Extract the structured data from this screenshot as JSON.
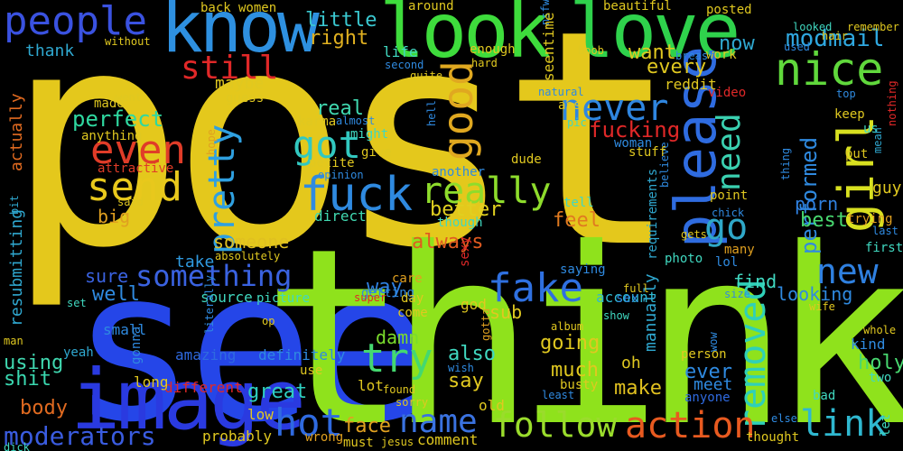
{
  "words": [
    {
      "id": "post",
      "text": "post",
      "color": "#e4c81c"
    },
    {
      "id": "see",
      "text": "see",
      "color": "#2546e8"
    },
    {
      "id": "think",
      "text": "think",
      "color": "#8fe21c"
    },
    {
      "id": "image",
      "text": "image",
      "color": "#2a3ae0"
    },
    {
      "id": "know",
      "text": "know",
      "color": "#2e90e0"
    },
    {
      "id": "look",
      "text": "look",
      "color": "#3edc3c"
    },
    {
      "id": "love",
      "text": "love",
      "color": "#2fd24c"
    },
    {
      "id": "people",
      "text": "people",
      "color": "#3a52e0"
    },
    {
      "id": "nice",
      "text": "nice",
      "color": "#60d83c"
    },
    {
      "id": "modmail",
      "text": "modmail",
      "color": "#2fa8e0"
    },
    {
      "id": "girl",
      "text": "girl",
      "color": "#d8e020"
    },
    {
      "id": "please",
      "text": "please",
      "color": "#2f6ce0"
    },
    {
      "id": "good",
      "text": "good",
      "color": "#e0a820"
    },
    {
      "id": "still",
      "text": "still",
      "color": "#e02828"
    },
    {
      "id": "fuck",
      "text": "fuck",
      "color": "#2f8ae0"
    },
    {
      "id": "send",
      "text": "send",
      "color": "#e8c81c"
    },
    {
      "id": "even",
      "text": "even",
      "color": "#e03c28"
    },
    {
      "id": "got",
      "text": "got",
      "color": "#32c8c0"
    },
    {
      "id": "really",
      "text": "really",
      "color": "#8edc2c"
    },
    {
      "id": "pretty",
      "text": "pretty",
      "color": "#2fa0e0"
    },
    {
      "id": "never",
      "text": "never",
      "color": "#2f86e0"
    },
    {
      "id": "need",
      "text": "need",
      "color": "#3ad0b0"
    },
    {
      "id": "go",
      "text": "go",
      "color": "#2fa8c8"
    },
    {
      "id": "removed",
      "text": "removed",
      "color": "#2fd0b8"
    },
    {
      "id": "fake",
      "text": "fake",
      "color": "#2f70e0"
    },
    {
      "id": "try",
      "text": "try",
      "color": "#44d870"
    },
    {
      "id": "something",
      "text": "something",
      "color": "#3a62e0"
    },
    {
      "id": "new",
      "text": "new",
      "color": "#2f80e0"
    },
    {
      "id": "hot",
      "text": "hot",
      "color": "#2f6ae0"
    },
    {
      "id": "name",
      "text": "name",
      "color": "#3a72e0"
    },
    {
      "id": "follow",
      "text": "follow",
      "color": "#9adc2c"
    },
    {
      "id": "action",
      "text": "action",
      "color": "#e85a20"
    },
    {
      "id": "link",
      "text": "link",
      "color": "#2fb8d0"
    },
    {
      "id": "moderators",
      "text": "moderators",
      "color": "#3a5ce0"
    },
    {
      "id": "perfect",
      "text": "perfect",
      "color": "#2fd8a0"
    },
    {
      "id": "fucking",
      "text": "fucking",
      "color": "#e02828"
    },
    {
      "id": "performed",
      "text": "performed",
      "color": "#2f8ae0"
    },
    {
      "id": "someone",
      "text": "someone",
      "color": "#e0c020"
    },
    {
      "id": "always",
      "text": "always",
      "color": "#e05a20"
    },
    {
      "id": "better",
      "text": "better",
      "color": "#e0d020"
    },
    {
      "id": "feel",
      "text": "feel",
      "color": "#e07a20"
    },
    {
      "id": "porn",
      "text": "porn",
      "color": "#2f80e0"
    },
    {
      "id": "best",
      "text": "best",
      "color": "#48d870"
    },
    {
      "id": "great",
      "text": "great",
      "color": "#2fd0c0"
    },
    {
      "id": "shit",
      "text": "shit",
      "color": "#3ad8b0"
    },
    {
      "id": "body",
      "text": "body",
      "color": "#e06a20"
    },
    {
      "id": "face",
      "text": "face",
      "color": "#e0a020"
    },
    {
      "id": "make",
      "text": "make",
      "color": "#e0c020"
    },
    {
      "id": "real",
      "text": "real",
      "color": "#40d8b0"
    },
    {
      "id": "little",
      "text": "little",
      "color": "#3ac8d0"
    },
    {
      "id": "right",
      "text": "right",
      "color": "#e0b020"
    },
    {
      "id": "maybe",
      "text": "maybe",
      "color": "#e0c820"
    },
    {
      "id": "every",
      "text": "every",
      "color": "#e0c820"
    },
    {
      "id": "want",
      "text": "want",
      "color": "#e0c820"
    },
    {
      "id": "now",
      "text": "now",
      "color": "#2fa8d0"
    },
    {
      "id": "way",
      "text": "way",
      "color": "#2f80e0"
    },
    {
      "id": "sub",
      "text": "sub",
      "color": "#e0c820"
    },
    {
      "id": "going",
      "text": "going",
      "color": "#e0c820"
    },
    {
      "id": "damn",
      "text": "damn",
      "color": "#7adc2c"
    },
    {
      "id": "much",
      "text": "much",
      "color": "#e0c820"
    },
    {
      "id": "also",
      "text": "also",
      "color": "#40d8c0"
    },
    {
      "id": "say",
      "text": "say",
      "color": "#e0c820"
    },
    {
      "id": "ever",
      "text": "ever",
      "color": "#2f8ae0"
    },
    {
      "id": "meet",
      "text": "meet",
      "color": "#2f8ae0"
    },
    {
      "id": "oh",
      "text": "oh",
      "color": "#e0c820"
    },
    {
      "id": "using",
      "text": "using",
      "color": "#40d8b0"
    },
    {
      "id": "well",
      "text": "well",
      "color": "#2f8ae0"
    },
    {
      "id": "sure",
      "text": "sure",
      "color": "#3a62e0"
    },
    {
      "id": "take",
      "text": "take",
      "color": "#2f9ae0"
    },
    {
      "id": "find",
      "text": "find",
      "color": "#40d8c0"
    },
    {
      "id": "looking",
      "text": "looking",
      "color": "#2f8ae0"
    },
    {
      "id": "holy",
      "text": "holy",
      "color": "#48d870"
    },
    {
      "id": "kind",
      "text": "kind",
      "color": "#2f8ae0"
    },
    {
      "id": "account",
      "text": "account",
      "color": "#2fb8d0"
    },
    {
      "id": "source",
      "text": "source",
      "color": "#40d8c0"
    },
    {
      "id": "big",
      "text": "big",
      "color": "#e0a020"
    },
    {
      "id": "direct",
      "text": "direct",
      "color": "#40d8b0"
    },
    {
      "id": "anything",
      "text": "anything",
      "color": "#e0c820"
    },
    {
      "id": "attractive",
      "text": "attractive",
      "color": "#e03c28"
    },
    {
      "id": "thank",
      "text": "thank",
      "color": "#2fa8d0"
    },
    {
      "id": "actually",
      "text": "actually",
      "color": "#e06a20"
    },
    {
      "id": "resubmitting",
      "text": "resubmitting",
      "color": "#2fa8d0"
    },
    {
      "id": "probably",
      "text": "probably",
      "color": "#e0c820"
    },
    {
      "id": "low",
      "text": "low",
      "color": "#e0c820"
    },
    {
      "id": "definitely",
      "text": "definitely",
      "color": "#2f8ae0"
    },
    {
      "id": "amazing",
      "text": "amazing",
      "color": "#2f6ae0"
    },
    {
      "id": "different",
      "text": "different",
      "color": "#e02828"
    },
    {
      "id": "small",
      "text": "small",
      "color": "#2f8ae0"
    },
    {
      "id": "yeah",
      "text": "yeah",
      "color": "#2fa8d0"
    },
    {
      "id": "long",
      "text": "long",
      "color": "#e0c820"
    },
    {
      "id": "gonna",
      "text": "gonna",
      "color": "#2f8ae0"
    },
    {
      "id": "picture",
      "text": "picture",
      "color": "#40d8c0"
    },
    {
      "id": "getting",
      "text": "getting",
      "color": "#2f8ae0"
    },
    {
      "id": "care",
      "text": "care",
      "color": "#e0a020"
    },
    {
      "id": "day",
      "text": "day",
      "color": "#e0c820"
    },
    {
      "id": "come",
      "text": "come",
      "color": "#e0c820"
    },
    {
      "id": "god",
      "text": "god",
      "color": "#e0c820"
    },
    {
      "id": "sexy",
      "text": "sexy",
      "color": "#e02828"
    },
    {
      "id": "wish",
      "text": "wish",
      "color": "#2f8ae0"
    },
    {
      "id": "gotta",
      "text": "gotta",
      "color": "#e0a020"
    },
    {
      "id": "old",
      "text": "old",
      "color": "#e0c820"
    },
    {
      "id": "lot",
      "text": "lot",
      "color": "#e0c820"
    },
    {
      "id": "found",
      "text": "found",
      "color": "#e0c820"
    },
    {
      "id": "sorry",
      "text": "sorry",
      "color": "#e0c820"
    },
    {
      "id": "least",
      "text": "least",
      "color": "#2f8ae0"
    },
    {
      "id": "busty",
      "text": "busty",
      "color": "#e0c820"
    },
    {
      "id": "must",
      "text": "must",
      "color": "#e0c820"
    },
    {
      "id": "comment",
      "text": "comment",
      "color": "#e0c820"
    },
    {
      "id": "jesus",
      "text": "jesus",
      "color": "#e0c820"
    },
    {
      "id": "wrong",
      "text": "wrong",
      "color": "#e0a020"
    },
    {
      "id": "thought",
      "text": "thought",
      "color": "#e0c820"
    },
    {
      "id": "else",
      "text": "else",
      "color": "#2f8ae0"
    },
    {
      "id": "anyone",
      "text": "anyone",
      "color": "#2f6ae0"
    },
    {
      "id": "bad",
      "text": "bad",
      "color": "#40d8c0"
    },
    {
      "id": "two",
      "text": "two",
      "color": "#40d8c0"
    },
    {
      "id": "let",
      "text": "let",
      "color": "#40d8c0"
    },
    {
      "id": "whole",
      "text": "whole",
      "color": "#e0c820"
    },
    {
      "id": "wife",
      "text": "wife",
      "color": "#e0c820"
    },
    {
      "id": "first",
      "text": "first",
      "color": "#40d8c0"
    },
    {
      "id": "trying",
      "text": "trying",
      "color": "#e0a020"
    },
    {
      "id": "guy",
      "text": "guy",
      "color": "#e0c820"
    },
    {
      "id": "us",
      "text": "us",
      "color": "#40d8c0"
    },
    {
      "id": "put",
      "text": "put",
      "color": "#e0c820"
    },
    {
      "id": "keep",
      "text": "keep",
      "color": "#e0c820"
    },
    {
      "id": "top",
      "text": "top",
      "color": "#2f8ae0"
    },
    {
      "id": "mean",
      "text": "mean",
      "color": "#2fa8d0"
    },
    {
      "id": "nothing",
      "text": "nothing",
      "color": "#e02828"
    },
    {
      "id": "last",
      "text": "last",
      "color": "#2f8ae0"
    },
    {
      "id": "many",
      "text": "many",
      "color": "#e0a020"
    },
    {
      "id": "lol",
      "text": "lol",
      "color": "#2f8ae0"
    },
    {
      "id": "size",
      "text": "size",
      "color": "#2f8ae0"
    },
    {
      "id": "point",
      "text": "point",
      "color": "#e0c820"
    },
    {
      "id": "chick",
      "text": "chick",
      "color": "#2f8ae0"
    },
    {
      "id": "thing",
      "text": "thing",
      "color": "#2f8ae0"
    },
    {
      "id": "gets",
      "text": "gets",
      "color": "#e0c820"
    },
    {
      "id": "believe",
      "text": "believe",
      "color": "#2f8ae0"
    },
    {
      "id": "requirements",
      "text": "requirements",
      "color": "#2fa8d0"
    },
    {
      "id": "manually",
      "text": "manually",
      "color": "#2fa8d0"
    },
    {
      "id": "photo",
      "text": "photo",
      "color": "#40d8c0"
    },
    {
      "id": "wow",
      "text": "wow",
      "color": "#2f8ae0"
    },
    {
      "id": "person",
      "text": "person",
      "color": "#e0c820"
    },
    {
      "id": "video",
      "text": "video",
      "color": "#e02828"
    },
    {
      "id": "reddit",
      "text": "reddit",
      "color": "#e0c820"
    },
    {
      "id": "work",
      "text": "work",
      "color": "#e0c820"
    },
    {
      "id": "posted",
      "text": "posted",
      "color": "#e0c820"
    },
    {
      "id": "beautiful",
      "text": "beautiful",
      "color": "#e0c820"
    },
    {
      "id": "nsfw",
      "text": "nsfw",
      "color": "#2f8ae0"
    },
    {
      "id": "seen",
      "text": "seen",
      "color": "#e0c820"
    },
    {
      "id": "time",
      "text": "time",
      "color": "#e0c820"
    },
    {
      "id": "enough",
      "text": "enough",
      "color": "#e0c820"
    },
    {
      "id": "hard",
      "text": "hard",
      "color": "#e0c820"
    },
    {
      "id": "around",
      "text": "around",
      "color": "#e0c820"
    },
    {
      "id": "life",
      "text": "life",
      "color": "#40d8c0"
    },
    {
      "id": "second",
      "text": "second",
      "color": "#2f8ae0"
    },
    {
      "id": "quite",
      "text": "quite",
      "color": "#e0c820"
    },
    {
      "id": "boob",
      "text": "boob",
      "color": "#e0c820"
    },
    {
      "id": "breast",
      "text": "breast",
      "color": "#2f8ae0"
    },
    {
      "id": "hair",
      "text": "hair",
      "color": "#e0c820"
    },
    {
      "id": "used",
      "text": "used",
      "color": "#2f8ae0"
    },
    {
      "id": "looked",
      "text": "looked",
      "color": "#40d8c0"
    },
    {
      "id": "remember",
      "text": "remember",
      "color": "#e0c820"
    },
    {
      "id": "natural",
      "text": "natural",
      "color": "#2f8ae0"
    },
    {
      "id": "ass",
      "text": "ass",
      "color": "#e0c820"
    },
    {
      "id": "pic",
      "text": "pic",
      "color": "#40d8c0"
    },
    {
      "id": "woman",
      "text": "woman",
      "color": "#2f8ae0"
    },
    {
      "id": "stuff",
      "text": "stuff",
      "color": "#e0c820"
    },
    {
      "id": "another",
      "text": "another",
      "color": "#2f8ae0"
    },
    {
      "id": "dude",
      "text": "dude",
      "color": "#e0c820"
    },
    {
      "id": "tell",
      "text": "tell",
      "color": "#40d8c0"
    },
    {
      "id": "though",
      "text": "though",
      "color": "#40d8c0"
    },
    {
      "id": "full",
      "text": "full",
      "color": "#e0c820"
    },
    {
      "id": "sex",
      "text": "sex",
      "color": "#2f8ae0"
    },
    {
      "id": "saying",
      "text": "saying",
      "color": "#2f8ae0"
    },
    {
      "id": "album",
      "text": "album",
      "color": "#e0c820"
    },
    {
      "id": "show",
      "text": "show",
      "color": "#40d8c0"
    },
    {
      "id": "hell",
      "text": "hell",
      "color": "#2f8ae0"
    },
    {
      "id": "karma",
      "text": "karma",
      "color": "#e0c820"
    },
    {
      "id": "almost",
      "text": "almost",
      "color": "#2f8ae0"
    },
    {
      "id": "might",
      "text": "might",
      "color": "#40d8c0"
    },
    {
      "id": "give",
      "text": "give",
      "color": "#e0c820"
    },
    {
      "id": "petite",
      "text": "petite",
      "color": "#e0c820"
    },
    {
      "id": "opinion",
      "text": "opinion",
      "color": "#2f8ae0"
    },
    {
      "id": "made",
      "text": "made",
      "color": "#e0c820"
    },
    {
      "id": "went",
      "text": "went",
      "color": "#e0c820"
    },
    {
      "id": "guess",
      "text": "guess",
      "color": "#e0c820"
    },
    {
      "id": "back",
      "text": "back",
      "color": "#e0c820"
    },
    {
      "id": "women",
      "text": "women",
      "color": "#e0c820"
    },
    {
      "id": "without",
      "text": "without",
      "color": "#e0c820"
    },
    {
      "id": "hope",
      "text": "hope",
      "color": "#e0a020"
    },
    {
      "id": "said",
      "text": "said",
      "color": "#e0c820"
    },
    {
      "id": "absolutely",
      "text": "absolutely",
      "color": "#e0c820"
    },
    {
      "id": "literally",
      "text": "literally",
      "color": "#2f8ae0"
    },
    {
      "id": "super",
      "text": "super",
      "color": "#e02828"
    },
    {
      "id": "op",
      "text": "op",
      "color": "#e0c820"
    },
    {
      "id": "set",
      "text": "set",
      "color": "#40d8c0"
    },
    {
      "id": "man",
      "text": "man",
      "color": "#e0c820"
    },
    {
      "id": "dick",
      "text": "dick",
      "color": "#40d8c0"
    },
    {
      "id": "bit",
      "text": "bit",
      "color": "#2fa8d0"
    },
    {
      "id": "use",
      "text": "use",
      "color": "#e0c820"
    }
  ]
}
